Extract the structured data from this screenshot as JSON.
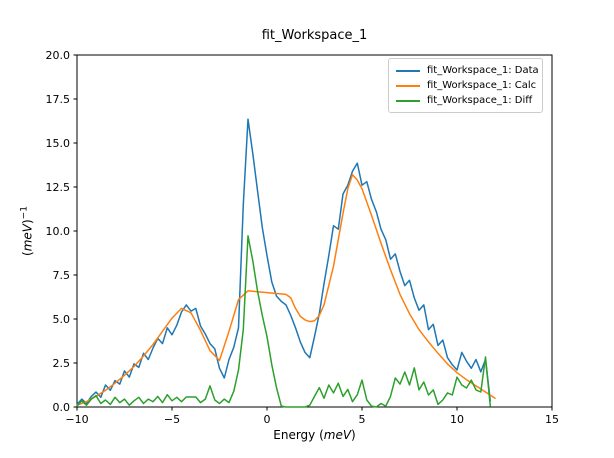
{
  "figure": {
    "title": "fit_Workspace_1"
  },
  "xaxis_label": {
    "prefix": "Energy (",
    "unit": "meV",
    "suffix": ")"
  },
  "yaxis_label": {
    "prefix": "(",
    "unit": "meV",
    "suffix": ")",
    "exponent": "−1"
  },
  "chart_data": {
    "type": "line",
    "title": "fit_Workspace_1",
    "xlabel": "Energy (meV)",
    "ylabel": "(meV)^-1",
    "xlim": [
      -10,
      15
    ],
    "ylim": [
      0,
      20
    ],
    "grid": false,
    "legend_position": "upper right",
    "axis_color": "#000000",
    "xticks": {
      "values": [
        -10,
        -5,
        0,
        5,
        10,
        15
      ],
      "labels": [
        "−10",
        "−5",
        "0",
        "5",
        "10",
        "15"
      ]
    },
    "yticks": {
      "values": [
        0,
        2.5,
        5,
        7.5,
        10,
        12.5,
        15,
        17.5,
        20
      ],
      "labels": [
        "0.0",
        "2.5",
        "5.0",
        "7.5",
        "10.0",
        "12.5",
        "15.0",
        "17.5",
        "20.0"
      ]
    },
    "series": [
      {
        "name": "fit_Workspace_1: Data",
        "color": "#1f77b4",
        "x": [
          -10,
          -9.75,
          -9.5,
          -9.25,
          -9,
          -8.75,
          -8.5,
          -8.25,
          -8,
          -7.75,
          -7.5,
          -7.25,
          -7,
          -6.75,
          -6.5,
          -6.25,
          -6,
          -5.75,
          -5.5,
          -5.25,
          -5,
          -4.75,
          -4.5,
          -4.25,
          -4,
          -3.75,
          -3.5,
          -3.25,
          -3,
          -2.75,
          -2.5,
          -2.25,
          -2,
          -1.75,
          -1.5,
          -1.25,
          -1,
          -0.75,
          -0.5,
          -0.25,
          0,
          0.25,
          0.5,
          0.75,
          1,
          1.25,
          1.5,
          1.75,
          2,
          2.25,
          2.5,
          2.75,
          3,
          3.25,
          3.5,
          3.75,
          4,
          4.25,
          4.5,
          4.75,
          5,
          5.25,
          5.5,
          5.75,
          6,
          6.25,
          6.5,
          6.75,
          7,
          7.25,
          7.5,
          7.75,
          8,
          8.25,
          8.5,
          8.75,
          9,
          9.25,
          9.5,
          9.75,
          10,
          10.25,
          10.5,
          10.75,
          11,
          11.25,
          11.5,
          11.75
        ],
        "y": [
          0.15,
          0.45,
          0.2,
          0.6,
          0.85,
          0.55,
          1.25,
          0.95,
          1.5,
          1.3,
          2.05,
          1.7,
          2.45,
          2.25,
          3.05,
          2.7,
          3.35,
          3.9,
          3.6,
          4.5,
          4.1,
          4.65,
          5.4,
          5.8,
          5.45,
          5.6,
          4.6,
          4.15,
          3.6,
          3.3,
          2.2,
          1.65,
          2.7,
          3.4,
          4.5,
          11.5,
          16.35,
          14.4,
          12.3,
          10.2,
          8.6,
          7.1,
          6.3,
          6.0,
          5.8,
          5.2,
          4.5,
          3.7,
          3.1,
          2.8,
          4.0,
          5.3,
          7.0,
          8.6,
          10.3,
          10.1,
          12.1,
          12.6,
          13.4,
          13.86,
          12.6,
          12.8,
          11.8,
          11.1,
          10.1,
          9.5,
          8.4,
          8.7,
          7.7,
          6.9,
          7.2,
          6.2,
          5.5,
          5.8,
          4.4,
          4.7,
          3.5,
          3.8,
          2.8,
          2.4,
          2.1,
          3.1,
          2.6,
          2.2,
          2.7,
          2.0,
          2.7,
          0.35
        ]
      },
      {
        "name": "fit_Workspace_1: Calc",
        "color": "#ff7f0e",
        "x": [
          -10,
          -9.5,
          -9,
          -8.5,
          -8,
          -7.5,
          -7,
          -6.5,
          -6,
          -5.5,
          -5,
          -4.5,
          -4,
          -3.5,
          -3,
          -2.5,
          -2,
          -1.5,
          -1,
          -0.5,
          0,
          0.5,
          1,
          1.25,
          1.5,
          1.75,
          2,
          2.25,
          2.5,
          2.75,
          3,
          3.5,
          4,
          4.25,
          4.5,
          4.75,
          5,
          5.5,
          6,
          6.5,
          7,
          7.5,
          8,
          8.5,
          9,
          9.5,
          10,
          10.5,
          11,
          11.5,
          12
        ],
        "y": [
          0.1,
          0.3,
          0.6,
          0.95,
          1.35,
          1.8,
          2.3,
          2.9,
          3.55,
          4.3,
          5.05,
          5.6,
          5.35,
          4.35,
          3.2,
          2.65,
          4.3,
          6.1,
          6.6,
          6.55,
          6.5,
          6.45,
          6.4,
          6.2,
          5.6,
          5.15,
          4.95,
          4.85,
          4.9,
          5.2,
          5.8,
          8.0,
          11.0,
          12.4,
          13.2,
          12.9,
          12.4,
          10.9,
          9.3,
          7.8,
          6.4,
          5.3,
          4.4,
          3.7,
          3.05,
          2.45,
          1.95,
          1.55,
          1.2,
          0.85,
          0.5
        ]
      },
      {
        "name": "fit_Workspace_1: Diff",
        "color": "#2ca02c",
        "x": [
          -10,
          -9.75,
          -9.5,
          -9.25,
          -9,
          -8.75,
          -8.5,
          -8.25,
          -8,
          -7.75,
          -7.5,
          -7.25,
          -7,
          -6.75,
          -6.5,
          -6.25,
          -6,
          -5.75,
          -5.5,
          -5.25,
          -5,
          -4.75,
          -4.5,
          -4.25,
          -4,
          -3.75,
          -3.5,
          -3.25,
          -3,
          -2.75,
          -2.5,
          -2.25,
          -2,
          -1.75,
          -1.5,
          -1.25,
          -1,
          -0.75,
          -0.5,
          -0.25,
          0,
          0.25,
          0.5,
          0.75,
          1,
          1.25,
          1.5,
          1.75,
          2,
          2.25,
          2.5,
          2.75,
          3,
          3.25,
          3.5,
          3.75,
          4,
          4.25,
          4.5,
          4.75,
          5,
          5.25,
          5.5,
          5.75,
          6,
          6.25,
          6.5,
          6.75,
          7,
          7.25,
          7.5,
          7.75,
          8,
          8.25,
          8.5,
          8.75,
          9,
          9.25,
          9.5,
          9.75,
          10,
          10.25,
          10.5,
          10.75,
          11,
          11.25,
          11.5,
          11.75
        ],
        "y": [
          0.05,
          0.35,
          0.1,
          0.45,
          0.65,
          0.2,
          0.4,
          0.15,
          0.55,
          0.25,
          0.45,
          0.1,
          0.35,
          0.55,
          0.2,
          0.45,
          0.3,
          0.6,
          0.25,
          0.7,
          0.35,
          0.55,
          0.3,
          0.57,
          0.57,
          0.57,
          0.25,
          0.45,
          1.2,
          0.4,
          0.2,
          0.45,
          0.25,
          0.9,
          2.1,
          4.4,
          9.72,
          8.3,
          6.6,
          5.2,
          4.0,
          2.4,
          1.1,
          0.05,
          0.0,
          0.0,
          0.0,
          0.0,
          0.0,
          0.1,
          0.6,
          1.1,
          0.5,
          1.25,
          0.8,
          1.35,
          0.6,
          1.0,
          0.3,
          0.7,
          1.53,
          0.4,
          0.05,
          0.0,
          0.2,
          0.05,
          0.6,
          1.65,
          1.3,
          1.99,
          1.25,
          2.22,
          0.97,
          1.42,
          0.68,
          0.97,
          0.15,
          0.4,
          0.8,
          0.68,
          1.7,
          1.25,
          1.08,
          1.53,
          0.97,
          0.85,
          2.84,
          0.05
        ]
      }
    ]
  }
}
